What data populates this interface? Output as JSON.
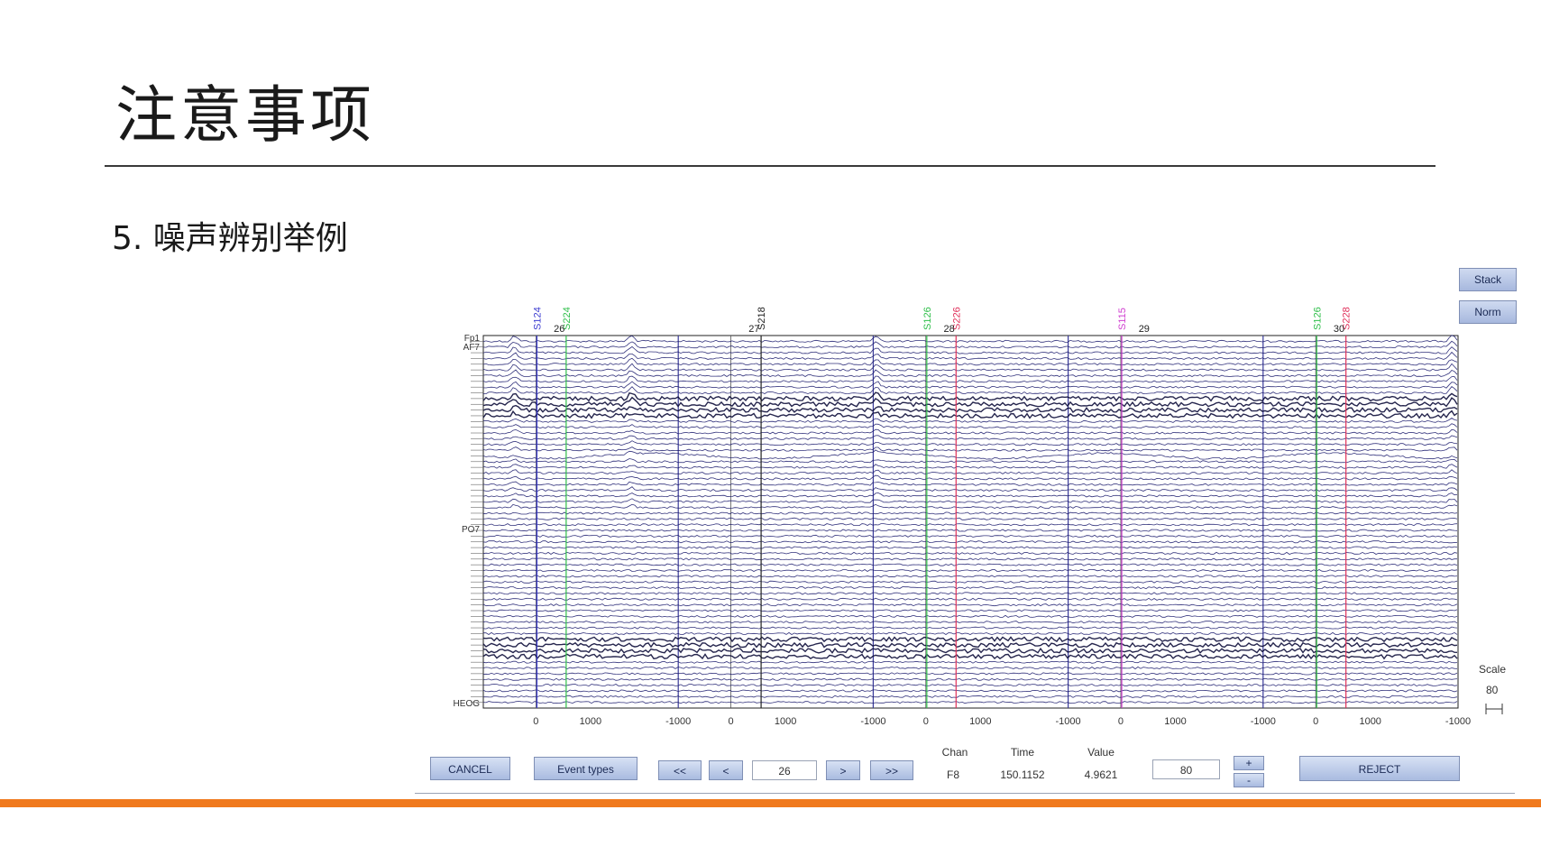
{
  "slide": {
    "title": "注意事项",
    "subtitle": "5.   噪声辨别举例"
  },
  "eeg": {
    "buttons": {
      "stack": "Stack",
      "norm": "Norm"
    },
    "scale": {
      "label": "Scale",
      "value": "80"
    },
    "events": [
      {
        "label": "S124",
        "color": "#3c3cd0"
      },
      {
        "label": "S224",
        "color": "#2fbf4a"
      },
      {
        "label": "S218",
        "color": "#222222"
      },
      {
        "label": "S126",
        "color": "#2fbf4a"
      },
      {
        "label": "S226",
        "color": "#e0305a"
      },
      {
        "label": "S115",
        "color": "#d040d0"
      },
      {
        "label": "S126",
        "color": "#2fbf4a"
      },
      {
        "label": "S228",
        "color": "#e0305a"
      }
    ],
    "epoch_numbers": [
      "26",
      "27",
      "28",
      "29",
      "30"
    ],
    "x_ticks": [
      "0",
      "1000",
      "-1000",
      "0",
      "1000",
      "-1000",
      "0",
      "1000",
      "-1000",
      "0",
      "1000",
      "-1000",
      "0",
      "1000",
      "-1000"
    ],
    "channel_labels": [
      "Fp1",
      "AF7",
      "PO7",
      "HEOG"
    ],
    "colors": {
      "trace": "#1c1c6e",
      "trace_dark": "#0d0d3a",
      "grid": "#3a3a9a",
      "button": "#b9c7e6"
    }
  },
  "controls": {
    "cancel": "CANCEL",
    "event_types": "Event types",
    "first": "<<",
    "prev": "<",
    "epoch": "26",
    "next": ">",
    "last": ">>",
    "chan_label": "Chan",
    "chan_value": "F8",
    "time_label": "Time",
    "time_value": "150.1152",
    "value_label": "Value",
    "value_value": "4.9621",
    "scale_input": "80",
    "scale_up": "+",
    "scale_down": "-",
    "reject": "REJECT"
  }
}
